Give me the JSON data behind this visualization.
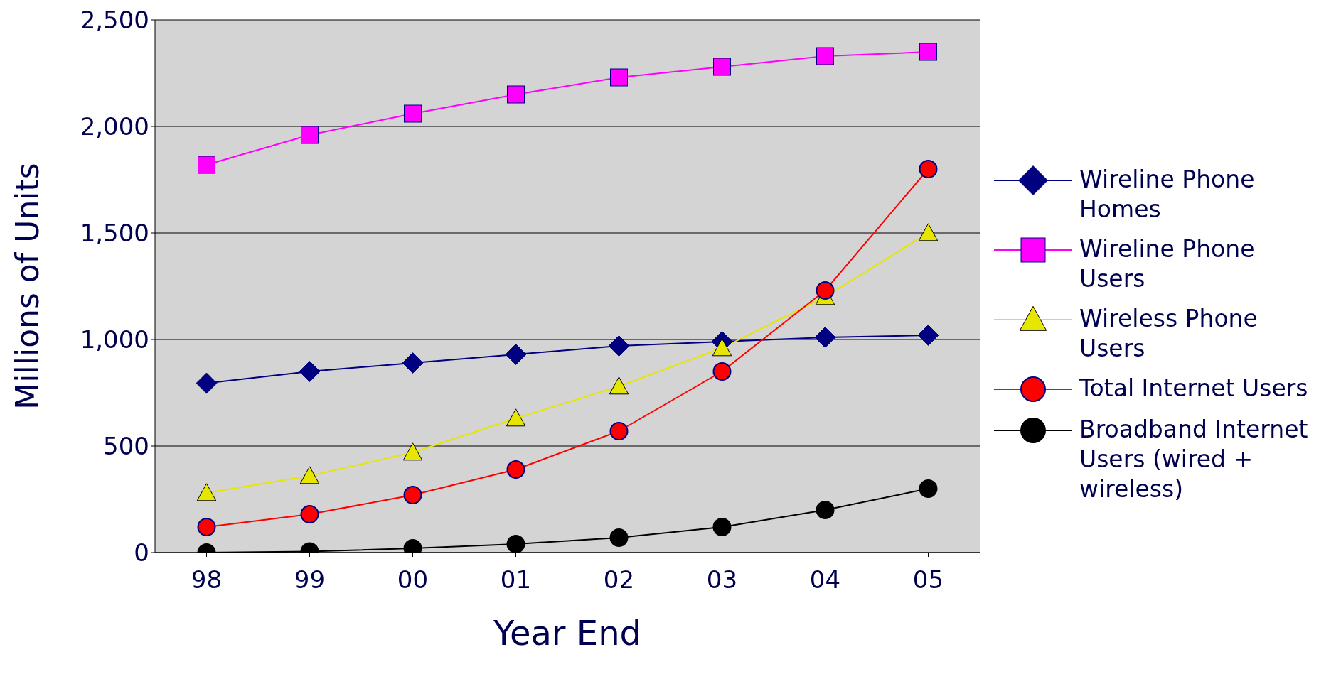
{
  "chart_data": {
    "type": "line",
    "xlabel": "Year End",
    "ylabel": "Millions of Units",
    "categories": [
      "98",
      "99",
      "00",
      "01",
      "02",
      "03",
      "04",
      "05"
    ],
    "series": [
      {
        "name": "Wireline Phone Homes",
        "color": "#000080",
        "marker": "diamond",
        "values": [
          795,
          850,
          890,
          930,
          970,
          990,
          1010,
          1020
        ]
      },
      {
        "name": "Wireline Phone Users",
        "color": "#ff00ff",
        "marker": "square",
        "values": [
          1820,
          1960,
          2060,
          2150,
          2230,
          2280,
          2330,
          2350
        ]
      },
      {
        "name": "Wireless Phone Users",
        "color": "#e6e600",
        "marker": "triangle",
        "values": [
          280,
          360,
          470,
          630,
          780,
          960,
          1200,
          1500
        ]
      },
      {
        "name": "Total Internet Users",
        "color": "#ff0000",
        "marker": "circle",
        "values": [
          120,
          180,
          270,
          390,
          570,
          850,
          1230,
          1800
        ]
      },
      {
        "name": "Broadband Internet Users (wired + wireless)",
        "color": "#000000",
        "marker": "circle",
        "values": [
          0,
          5,
          20,
          40,
          70,
          120,
          200,
          300
        ]
      }
    ],
    "ylim": [
      0,
      2500
    ],
    "yticks": [
      0,
      {
        "value": 500,
        "label": "500"
      },
      {
        "value": 1000,
        "label": "1,000"
      },
      {
        "value": 1500,
        "label": "1,500"
      },
      {
        "value": 2000,
        "label": "2,000"
      },
      {
        "value": 2500,
        "label": "2,500"
      }
    ],
    "grid": "y",
    "legend": "right"
  }
}
